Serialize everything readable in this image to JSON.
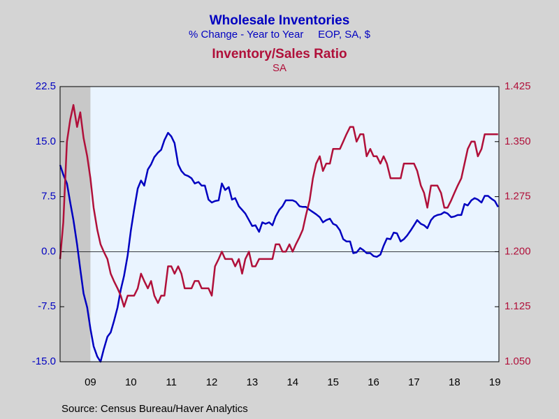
{
  "chart_data": {
    "type": "line",
    "title": "Wholesale Inventories",
    "subtitle": "% Change - Year to Year     EOP, SA, $",
    "title2": "Inventory/Sales Ratio",
    "subtitle2": "SA",
    "source": "Source:  Census Bureau/Haver Analytics",
    "xlim": [
      2008.75,
      2019.6
    ],
    "xticks": [
      {
        "value": 2009.5,
        "label": "09"
      },
      {
        "value": 2010.5,
        "label": "10"
      },
      {
        "value": 2011.5,
        "label": "11"
      },
      {
        "value": 2012.5,
        "label": "12"
      },
      {
        "value": 2013.5,
        "label": "13"
      },
      {
        "value": 2014.5,
        "label": "14"
      },
      {
        "value": 2015.5,
        "label": "15"
      },
      {
        "value": 2016.5,
        "label": "16"
      },
      {
        "value": 2017.5,
        "label": "17"
      },
      {
        "value": 2018.5,
        "label": "18"
      },
      {
        "value": 2019.5,
        "label": "19"
      }
    ],
    "ylim": [
      -15,
      22.5
    ],
    "yticks": [
      {
        "value": -15,
        "label": "-15.0"
      },
      -7.5,
      {
        "value": 0,
        "label": "0.0"
      },
      7.5,
      {
        "value": 15,
        "label": "15.0"
      },
      22.5
    ],
    "y2lim": [
      1.05,
      1.425
    ],
    "y2ticks": [
      {
        "value": 1.05,
        "label": "1.050"
      },
      1.125,
      {
        "value": 1.2,
        "label": "1.200"
      },
      1.275,
      {
        "value": 1.35,
        "label": "1.350"
      },
      1.425
    ],
    "recession": [
      2008.75,
      2009.5
    ],
    "x": [
      2008.75,
      2008.83,
      2008.92,
      2009.0,
      2009.08,
      2009.17,
      2009.25,
      2009.33,
      2009.42,
      2009.5,
      2009.58,
      2009.67,
      2009.75,
      2009.83,
      2009.92,
      2010.0,
      2010.08,
      2010.17,
      2010.25,
      2010.33,
      2010.42,
      2010.5,
      2010.58,
      2010.67,
      2010.75,
      2010.83,
      2010.92,
      2011.0,
      2011.08,
      2011.17,
      2011.25,
      2011.33,
      2011.42,
      2011.5,
      2011.58,
      2011.67,
      2011.75,
      2011.83,
      2011.92,
      2012.0,
      2012.08,
      2012.17,
      2012.25,
      2012.33,
      2012.42,
      2012.5,
      2012.58,
      2012.67,
      2012.75,
      2012.83,
      2012.92,
      2013.0,
      2013.08,
      2013.17,
      2013.25,
      2013.33,
      2013.42,
      2013.5,
      2013.58,
      2013.67,
      2013.75,
      2013.83,
      2013.92,
      2014.0,
      2014.08,
      2014.17,
      2014.25,
      2014.33,
      2014.42,
      2014.5,
      2014.58,
      2014.67,
      2014.75,
      2014.83,
      2014.92,
      2015.0,
      2015.08,
      2015.17,
      2015.25,
      2015.33,
      2015.42,
      2015.5,
      2015.58,
      2015.67,
      2015.75,
      2015.83,
      2015.92,
      2016.0,
      2016.08,
      2016.17,
      2016.25,
      2016.33,
      2016.42,
      2016.5,
      2016.58,
      2016.67,
      2016.75,
      2016.83,
      2016.92,
      2017.0,
      2017.08,
      2017.17,
      2017.25,
      2017.33,
      2017.42,
      2017.5,
      2017.58,
      2017.67,
      2017.75,
      2017.83,
      2017.92,
      2018.0,
      2018.08,
      2018.17,
      2018.25,
      2018.33,
      2018.42,
      2018.5,
      2018.58,
      2018.67,
      2018.75,
      2018.83,
      2018.92,
      2019.0,
      2019.08,
      2019.17,
      2019.25,
      2019.33,
      2019.42,
      2019.5,
      2019.58
    ],
    "series": [
      {
        "name": "Wholesale Inventories",
        "color": "#0000c0",
        "axis": "y",
        "values": [
          11.8,
          10.5,
          9.3,
          6.7,
          4.3,
          1,
          -2.4,
          -5.7,
          -7.6,
          -10.5,
          -12.9,
          -14.3,
          -15,
          -13.3,
          -11.6,
          -11,
          -9.5,
          -7.6,
          -5.2,
          -3.3,
          -0.5,
          2.9,
          5.7,
          8.6,
          9.7,
          9,
          11.2,
          11.9,
          12.9,
          13.5,
          13.9,
          15.2,
          16.2,
          15.7,
          14.8,
          11.9,
          11,
          10.5,
          10.3,
          10,
          9.3,
          9.5,
          9,
          9,
          7.1,
          6.7,
          6.9,
          7,
          9.3,
          8.4,
          8.8,
          7.1,
          7.3,
          6.2,
          5.7,
          5.2,
          4.3,
          3.5,
          3.6,
          2.7,
          4,
          3.8,
          4,
          3.6,
          4.8,
          5.7,
          6.2,
          7,
          7,
          7,
          6.8,
          6.2,
          6.1,
          6.1,
          5.7,
          5.4,
          5.1,
          4.7,
          4,
          4.3,
          4.5,
          3.8,
          3.6,
          2.9,
          1.7,
          1.4,
          1.4,
          -0.2,
          -0.1,
          0.5,
          0.2,
          -0.2,
          -0.2,
          -0.6,
          -0.7,
          -0.4,
          0.8,
          1.8,
          1.7,
          2.6,
          2.5,
          1.4,
          1.7,
          2.2,
          2.9,
          3.6,
          4.3,
          3.8,
          3.6,
          3.2,
          4.3,
          4.8,
          5,
          5.1,
          5.4,
          5.2,
          4.7,
          4.8,
          5,
          5,
          6.5,
          6.3,
          7,
          7.3,
          7.1,
          6.7,
          7.6,
          7.6,
          7.2,
          6.9,
          6.1
        ]
      },
      {
        "name": "Inventory/Sales Ratio",
        "color": "#b0103a",
        "axis": "y2",
        "values": [
          1.19,
          1.24,
          1.35,
          1.38,
          1.4,
          1.37,
          1.39,
          1.355,
          1.33,
          1.3,
          1.26,
          1.23,
          1.21,
          1.2,
          1.19,
          1.17,
          1.16,
          1.15,
          1.14,
          1.125,
          1.14,
          1.14,
          1.14,
          1.15,
          1.17,
          1.16,
          1.15,
          1.16,
          1.14,
          1.13,
          1.14,
          1.14,
          1.18,
          1.18,
          1.17,
          1.18,
          1.17,
          1.15,
          1.15,
          1.15,
          1.16,
          1.16,
          1.15,
          1.15,
          1.15,
          1.14,
          1.18,
          1.19,
          1.2,
          1.19,
          1.19,
          1.19,
          1.18,
          1.19,
          1.17,
          1.19,
          1.2,
          1.18,
          1.18,
          1.19,
          1.19,
          1.19,
          1.19,
          1.19,
          1.21,
          1.21,
          1.2,
          1.2,
          1.21,
          1.2,
          1.21,
          1.22,
          1.23,
          1.25,
          1.27,
          1.3,
          1.32,
          1.33,
          1.31,
          1.32,
          1.32,
          1.34,
          1.34,
          1.34,
          1.35,
          1.36,
          1.37,
          1.37,
          1.35,
          1.36,
          1.36,
          1.33,
          1.34,
          1.33,
          1.33,
          1.32,
          1.33,
          1.32,
          1.3,
          1.3,
          1.3,
          1.3,
          1.32,
          1.32,
          1.32,
          1.32,
          1.31,
          1.29,
          1.28,
          1.26,
          1.29,
          1.29,
          1.29,
          1.28,
          1.26,
          1.26,
          1.27,
          1.28,
          1.29,
          1.3,
          1.32,
          1.34,
          1.35,
          1.35,
          1.33,
          1.34,
          1.36,
          1.36,
          1.36,
          1.36,
          1.36
        ]
      }
    ]
  }
}
